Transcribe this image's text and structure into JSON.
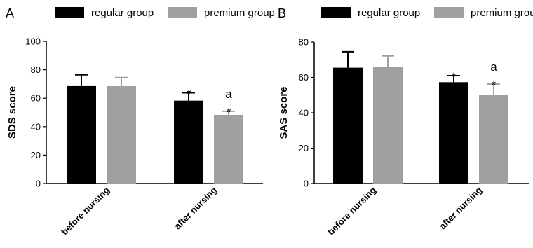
{
  "chart_data": [
    {
      "panel": "A",
      "type": "bar",
      "title": "",
      "xlabel": "",
      "ylabel": "SDS score",
      "ylim": [
        0,
        100
      ],
      "yticks": [
        0,
        20,
        40,
        60,
        80,
        100
      ],
      "categories": [
        "before nursing",
        "after nursing"
      ],
      "series": [
        {
          "name": "regular group",
          "color": "#000000",
          "values": [
            68.5,
            58.3
          ],
          "errors": [
            8.0,
            5.5
          ]
        },
        {
          "name": "premium group",
          "color": "#a0a0a0",
          "values": [
            68.5,
            48.3
          ],
          "errors": [
            6.0,
            2.5
          ]
        }
      ],
      "annotations": [
        {
          "category": "after nursing",
          "series": "regular group",
          "labels": [
            "*"
          ]
        },
        {
          "category": "after nursing",
          "series": "premium group",
          "labels": [
            "a",
            "*"
          ]
        }
      ],
      "legend": "top",
      "grid": false
    },
    {
      "panel": "B",
      "type": "bar",
      "title": "",
      "xlabel": "",
      "ylabel": "SAS score",
      "ylim": [
        0,
        80
      ],
      "yticks": [
        0,
        20,
        40,
        60,
        80
      ],
      "categories": [
        "before nursing",
        "after nursing"
      ],
      "series": [
        {
          "name": "regular group",
          "color": "#000000",
          "values": [
            65.5,
            57.3
          ],
          "errors": [
            9.0,
            3.7
          ]
        },
        {
          "name": "premium group",
          "color": "#a0a0a0",
          "values": [
            66.0,
            50.0
          ],
          "errors": [
            6.2,
            6.2
          ]
        }
      ],
      "annotations": [
        {
          "category": "after nursing",
          "series": "regular group",
          "labels": [
            "*"
          ]
        },
        {
          "category": "after nursing",
          "series": "premium group",
          "labels": [
            "a",
            "*"
          ]
        }
      ],
      "legend": "top",
      "grid": false
    }
  ]
}
